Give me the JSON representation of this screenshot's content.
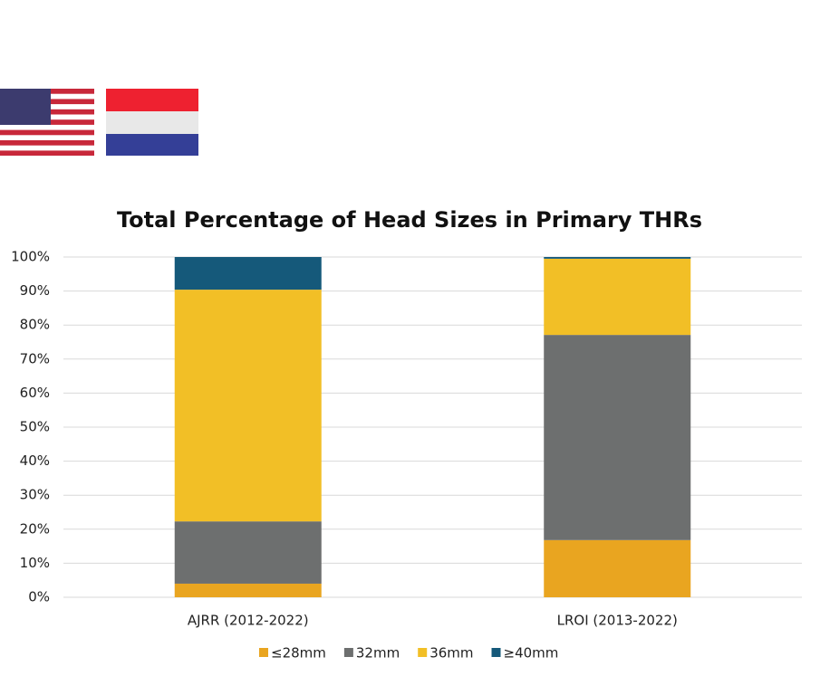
{
  "chart_data": {
    "type": "stacked_bar",
    "title": "Total Percentage of Head Sizes in Primary THRs",
    "categories": [
      "AJRR (2012-2022)",
      "LROI (2013-2022)"
    ],
    "series": [
      {
        "name": "≤28mm",
        "color": "#e9a520",
        "values": [
          4.0,
          16.8
        ]
      },
      {
        "name": "32mm",
        "color": "#6d6f6f",
        "values": [
          18.3,
          60.3
        ]
      },
      {
        "name": "36mm",
        "color": "#f2bf26",
        "values": [
          68.1,
          22.4
        ]
      },
      {
        "name": "≥40mm",
        "color": "#15597a",
        "values": [
          9.6,
          0.5
        ]
      }
    ],
    "ylim": [
      0,
      100
    ],
    "yticks": [
      {
        "value": 0,
        "label": "0%"
      },
      {
        "value": 10,
        "label": "10%"
      },
      {
        "value": 20,
        "label": "20%"
      },
      {
        "value": 30,
        "label": "30%"
      },
      {
        "value": 40,
        "label": "40%"
      },
      {
        "value": 50,
        "label": "50%"
      },
      {
        "value": 60,
        "label": "60%"
      },
      {
        "value": 70,
        "label": "70%"
      },
      {
        "value": 80,
        "label": "80%"
      },
      {
        "value": 90,
        "label": "90%"
      },
      {
        "value": 100,
        "label": "100%"
      }
    ],
    "grid": true,
    "legend": "bottom"
  }
}
